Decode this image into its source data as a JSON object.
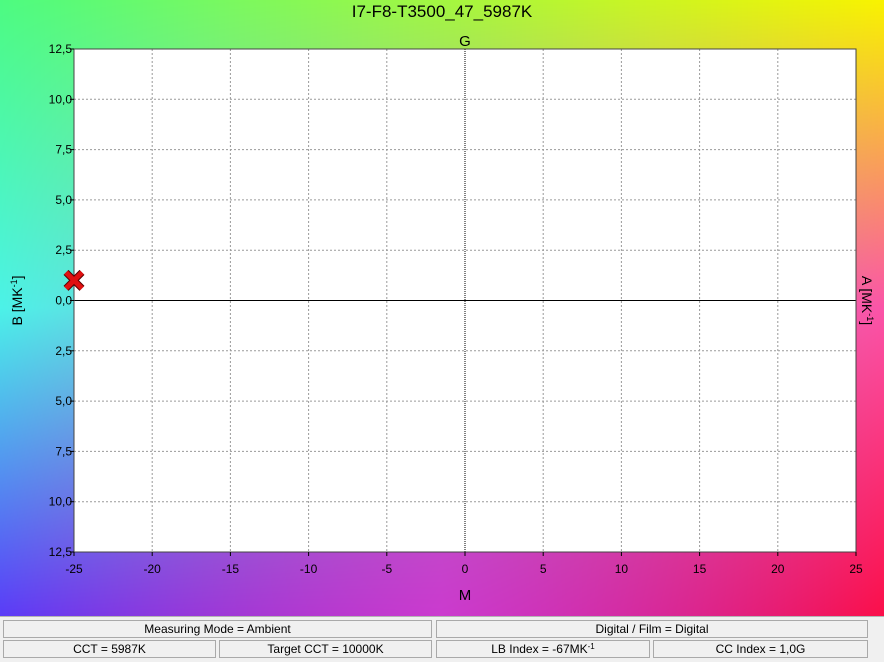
{
  "window": {
    "title": "I7-F8-T3500_47_5987K"
  },
  "colors": {
    "corner_top_left": "#4dfb81",
    "corner_top_right": "#f9f300",
    "corner_bottom_left": "#5a3cf7",
    "corner_bottom_right": "#fb0f4a",
    "left_mid": "#4cf2e8",
    "right_mid": "#fb54a8",
    "bottom_mid": "#e64cf4",
    "plot_background": "#ffffff",
    "grid": "#9a9a9a",
    "axis": "#000000",
    "marker_fill": "#e01010",
    "marker_stroke": "#5a0000"
  },
  "chart_data": {
    "type": "scatter",
    "title": "I7-F8-T3500_47_5987K",
    "axis_labels": {
      "top": "G",
      "bottom": "M",
      "left": "B [MK",
      "right": "A [MK",
      "unit_exponent": "-1"
    },
    "xlim": [
      -25,
      25
    ],
    "ylim": [
      -12.5,
      12.5
    ],
    "x_ticks": [
      -25,
      -20,
      -15,
      -10,
      -5,
      0,
      5,
      10,
      15,
      20,
      25
    ],
    "x_tick_labels": [
      "-25",
      "-20",
      "-15",
      "-10",
      "-5",
      "0",
      "5",
      "10",
      "15",
      "20",
      "25"
    ],
    "y_ticks": [
      12.5,
      10,
      7.5,
      5,
      2.5,
      0,
      -2.5,
      -5,
      -7.5,
      -10,
      -12.5
    ],
    "y_tick_labels": [
      "12,5",
      "10,0",
      "7,5",
      "5,0",
      "2,5",
      "0,0",
      "2,5",
      "5,0",
      "7,5",
      "10,0",
      "12,5"
    ],
    "grid": true,
    "points": [
      {
        "x": -25,
        "y": 1.0,
        "marker": "x"
      }
    ]
  },
  "status": {
    "measuring_mode": "Measuring Mode = Ambient",
    "digital_film": "Digital / Film = Digital",
    "cct": "CCT = 5987K",
    "target_cct": "Target CCT = 10000K",
    "lb_index": "LB Index = -67MK",
    "lb_index_exponent": "-1",
    "cc_index": "CC Index = 1,0G"
  }
}
